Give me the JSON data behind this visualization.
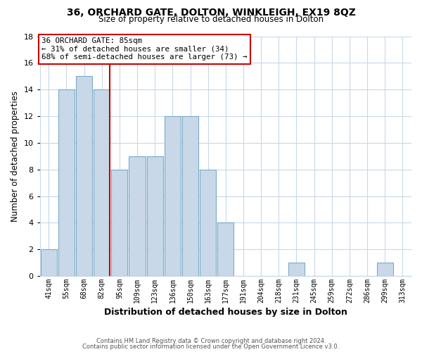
{
  "title": "36, ORCHARD GATE, DOLTON, WINKLEIGH, EX19 8QZ",
  "subtitle": "Size of property relative to detached houses in Dolton",
  "xlabel": "Distribution of detached houses by size in Dolton",
  "ylabel": "Number of detached properties",
  "bar_labels": [
    "41sqm",
    "55sqm",
    "68sqm",
    "82sqm",
    "95sqm",
    "109sqm",
    "123sqm",
    "136sqm",
    "150sqm",
    "163sqm",
    "177sqm",
    "191sqm",
    "204sqm",
    "218sqm",
    "231sqm",
    "245sqm",
    "259sqm",
    "272sqm",
    "286sqm",
    "299sqm",
    "313sqm"
  ],
  "bar_values": [
    2,
    14,
    15,
    14,
    8,
    9,
    9,
    12,
    12,
    8,
    4,
    0,
    0,
    0,
    1,
    0,
    0,
    0,
    0,
    1,
    0
  ],
  "bar_color": "#c8d8e8",
  "bar_edge_color": "#7aaac8",
  "vline_color": "#cc0000",
  "ylim": [
    0,
    18
  ],
  "yticks": [
    0,
    2,
    4,
    6,
    8,
    10,
    12,
    14,
    16,
    18
  ],
  "annotation_title": "36 ORCHARD GATE: 85sqm",
  "annotation_line1": "← 31% of detached houses are smaller (34)",
  "annotation_line2": "68% of semi-detached houses are larger (73) →",
  "annotation_box_color": "#ffffff",
  "annotation_box_edge": "#cc0000",
  "footer1": "Contains HM Land Registry data © Crown copyright and database right 2024.",
  "footer2": "Contains public sector information licensed under the Open Government Licence v3.0.",
  "bg_color": "#ffffff",
  "grid_color": "#c8d8e8"
}
